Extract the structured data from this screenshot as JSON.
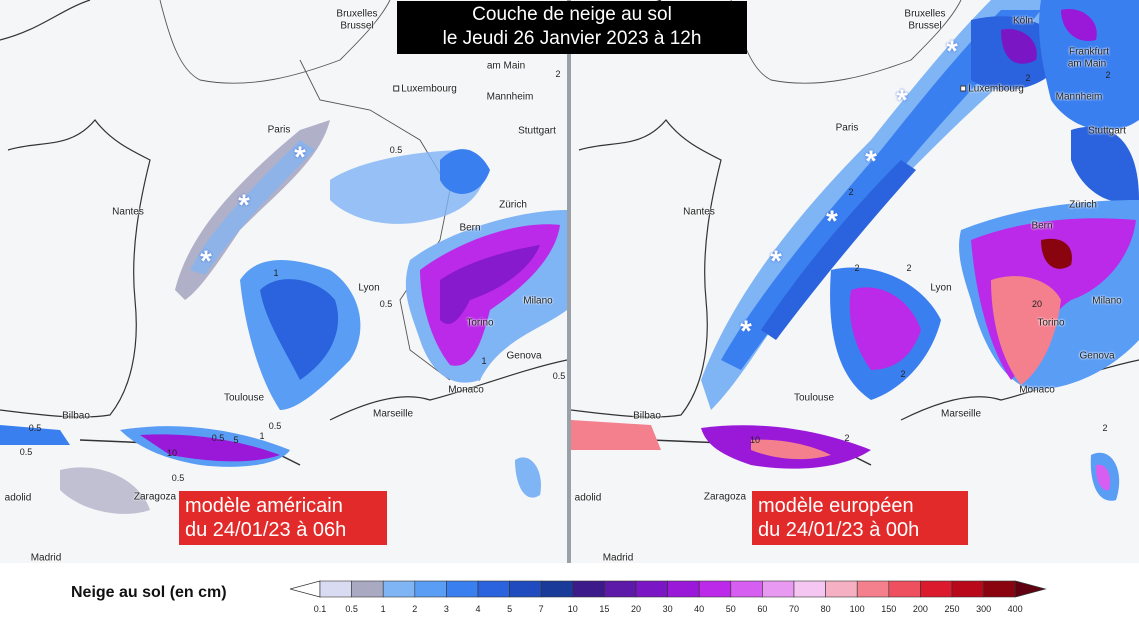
{
  "header": {
    "title_line1": "Couche de neige au sol",
    "title_line2": "le Jeudi 26 Janvier 2023 à 12h"
  },
  "panels": {
    "left": {
      "model_line1": "modèle américain",
      "model_line2": "du 24/01/23 à 06h",
      "cities": [
        "Bruxelles",
        "Brussel",
        "Luxembourg",
        "Mannheim",
        "Stuttgart",
        "Paris",
        "Nantes",
        "Bern",
        "Zürich",
        "Lyon",
        "Milano",
        "Torino",
        "Genova",
        "Monaco",
        "Toulouse",
        "Marseille",
        "Bilbao",
        "Zaragoza",
        "Madrid",
        "adolid",
        "am Main"
      ],
      "contour_labels": [
        "0.5",
        "0.5",
        "1",
        "0.5",
        "0.5",
        "0.5",
        "0.5",
        "1",
        "0.5",
        "0.5",
        "10",
        "5",
        "1",
        "2"
      ]
    },
    "right": {
      "model_line1": "modèle européen",
      "model_line2": "du 24/01/23 à 00h",
      "cities": [
        "Bruxelles",
        "Brussel",
        "Köln",
        "Frankfurt",
        "am Main",
        "Luxembourg",
        "Mannheim",
        "Stuttgart",
        "Paris",
        "Nantes",
        "Bern",
        "Zürich",
        "Lyon",
        "Milano",
        "Torino",
        "Genova",
        "Monaco",
        "Toulouse",
        "Marseille",
        "Bilbao",
        "Zaragoza",
        "Madrid",
        "adolid"
      ],
      "contour_labels": [
        "2",
        "2",
        "2",
        "2",
        "2",
        "2",
        "2",
        "20",
        "10",
        "2"
      ]
    }
  },
  "legend": {
    "title": "Neige au sol (en cm)",
    "ticks": [
      "0.1",
      "0.5",
      "1",
      "2",
      "3",
      "4",
      "5",
      "7",
      "10",
      "15",
      "20",
      "30",
      "40",
      "50",
      "60",
      "70",
      "80",
      "100",
      "150",
      "200",
      "250",
      "300",
      "400"
    ],
    "colors": [
      "#d9dbf2",
      "#a9aac2",
      "#7fb4f5",
      "#5a9df5",
      "#3a7ff0",
      "#2a63dd",
      "#1f4bbf",
      "#1a3a9a",
      "#3c1a8a",
      "#5d19a8",
      "#7a16c4",
      "#9a18d8",
      "#bb2ae8",
      "#d65ef0",
      "#e89af2",
      "#f6c6f2",
      "#f6b0c4",
      "#f4808e",
      "#ee5060",
      "#dc1a2e",
      "#b8081a",
      "#8a0410",
      "#600010"
    ]
  },
  "icons": {
    "snowflake": "snowflake-icon",
    "city_marker": "city-square-icon"
  }
}
